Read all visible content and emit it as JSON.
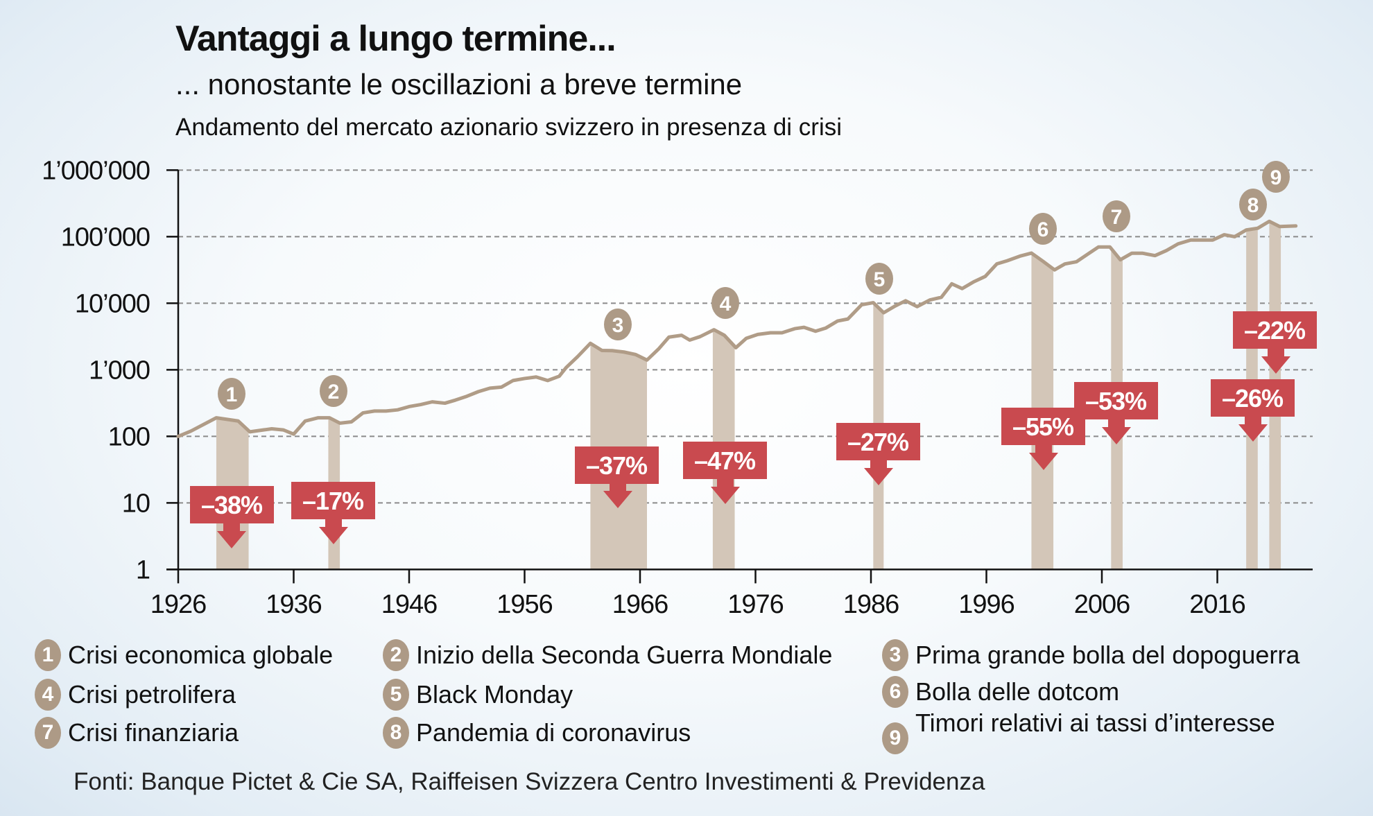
{
  "chart_data": {
    "type": "line",
    "title": "Vantaggi a lungo termine...",
    "subtitle": "... nonostante le oscillazioni a breve termine",
    "description": "Andamento del mercato azionario svizzero in presenza di crisi",
    "xlabel": "",
    "ylabel": "",
    "yscale": "log",
    "ylim": [
      1,
      1000000
    ],
    "xlim": [
      1926,
      2024
    ],
    "grid": "horizontal-dashed",
    "y_ticks": [
      {
        "v": 1,
        "label": "1"
      },
      {
        "v": 10,
        "label": "10"
      },
      {
        "v": 100,
        "label": "100"
      },
      {
        "v": 1000,
        "label": "1’000"
      },
      {
        "v": 10000,
        "label": "10’000"
      },
      {
        "v": 100000,
        "label": "100’000"
      },
      {
        "v": 1000000,
        "label": "1’000’000"
      }
    ],
    "x_ticks": [
      {
        "v": 1926,
        "label": "1926"
      },
      {
        "v": 1936,
        "label": "1936"
      },
      {
        "v": 1946,
        "label": "1946"
      },
      {
        "v": 1956,
        "label": "1956"
      },
      {
        "v": 1966,
        "label": "1966"
      },
      {
        "v": 1976,
        "label": "1976"
      },
      {
        "v": 1986,
        "label": "1986"
      },
      {
        "v": 1996,
        "label": "1996"
      },
      {
        "v": 2006,
        "label": "2006"
      },
      {
        "v": 2016,
        "label": "2016"
      }
    ],
    "series": [
      {
        "name": "Mercato azionario svizzero",
        "color": "#b09c87",
        "x": [
          1926,
          1927.1,
          1929.3,
          1931.2,
          1932.2,
          1934.1,
          1935.1,
          1936,
          1937,
          1938.1,
          1939.1,
          1940,
          1941,
          1942,
          1943,
          1944,
          1945,
          1946,
          1947,
          1948,
          1949.1,
          1950,
          1951,
          1952,
          1953,
          1954,
          1955,
          1956,
          1957,
          1958,
          1959,
          1959.6,
          1960.6,
          1961.7,
          1962.7,
          1963.6,
          1964.6,
          1965.6,
          1966.6,
          1967.6,
          1968.5,
          1969.6,
          1970.3,
          1971.2,
          1972.4,
          1973.3,
          1974.3,
          1975.2,
          1976.2,
          1977.3,
          1978.3,
          1979.4,
          1980.2,
          1981.2,
          1982.1,
          1983.1,
          1984,
          1985.2,
          1986.2,
          1987.1,
          1988.1,
          1989,
          1990,
          1991.1,
          1992.1,
          1993,
          1993.9,
          1994.9,
          1995.9,
          1996.9,
          1997.8,
          1998.9,
          1999.9,
          2000.9,
          2001.9,
          2002.8,
          2003.8,
          2004.8,
          2005.7,
          2006.7,
          2007.6,
          2008.6,
          2009.5,
          2010.6,
          2011.6,
          2012.6,
          2013.7,
          2014.6,
          2015.6,
          2016.6,
          2017.5,
          2018.5,
          2019.5,
          2020.5,
          2021.4,
          2022.8
        ],
        "y": [
          100,
          120,
          190,
          170,
          117,
          130,
          125,
          108,
          170,
          190,
          190,
          158,
          165,
          225,
          240,
          240,
          250,
          280,
          300,
          330,
          315,
          350,
          400,
          470,
          530,
          550,
          690,
          740,
          780,
          690,
          800,
          1080,
          1580,
          2500,
          1950,
          1940,
          1850,
          1700,
          1400,
          2050,
          3100,
          3300,
          2800,
          3150,
          4000,
          3300,
          2150,
          2970,
          3400,
          3600,
          3600,
          4150,
          4350,
          3800,
          4250,
          5400,
          5800,
          9500,
          10200,
          7200,
          9100,
          10900,
          8900,
          11200,
          12300,
          19600,
          16600,
          21000,
          25300,
          39000,
          43500,
          51000,
          56700,
          42700,
          31700,
          39000,
          42000,
          55000,
          70000,
          70000,
          45000,
          56500,
          56500,
          52000,
          62000,
          78000,
          89000,
          89000,
          89000,
          107000,
          100000,
          126000,
          134000,
          170000,
          142000,
          145000
        ]
      }
    ],
    "crises": [
      {
        "number": "1",
        "start": 1929.3,
        "end": 1932.1,
        "drawdown": "–38%",
        "name": "Crisi economica globale"
      },
      {
        "number": "2",
        "start": 1939.0,
        "end": 1940.0,
        "drawdown": "–17%",
        "name": "Inizio della Seconda Guerra Mondiale"
      },
      {
        "number": "3",
        "start": 1961.7,
        "end": 1966.6,
        "drawdown": "–37%",
        "name": "Prima grande bolla del dopoguerra"
      },
      {
        "number": "4",
        "start": 1972.3,
        "end": 1974.2,
        "drawdown": "–47%",
        "name": "Crisi petrolifera"
      },
      {
        "number": "5",
        "start": 1986.2,
        "end": 1987.1,
        "drawdown": "–27%",
        "name": "Black Monday"
      },
      {
        "number": "6",
        "start": 1999.9,
        "end": 2001.8,
        "drawdown": "–55%",
        "name": "Bolla delle dotcom"
      },
      {
        "number": "7",
        "start": 2006.8,
        "end": 2007.8,
        "drawdown": "–53%",
        "name": "Crisi finanziaria"
      },
      {
        "number": "8",
        "start": 2018.5,
        "end": 2019.5,
        "drawdown": "–26%",
        "name": "Pandemia di coronavirus"
      },
      {
        "number": "9",
        "start": 2020.5,
        "end": 2021.5,
        "drawdown": "–22%",
        "name": "Timori relativi ai tassi d’interesse"
      }
    ],
    "colors": {
      "line": "#b09c87",
      "shade": "#d3c6b8",
      "label": "#c94a4f",
      "badge": "#ad9a86"
    },
    "source": "Fonti: Banque Pictet & Cie SA, Raiffeisen Svizzera Centro Investimenti & Previdenza"
  }
}
